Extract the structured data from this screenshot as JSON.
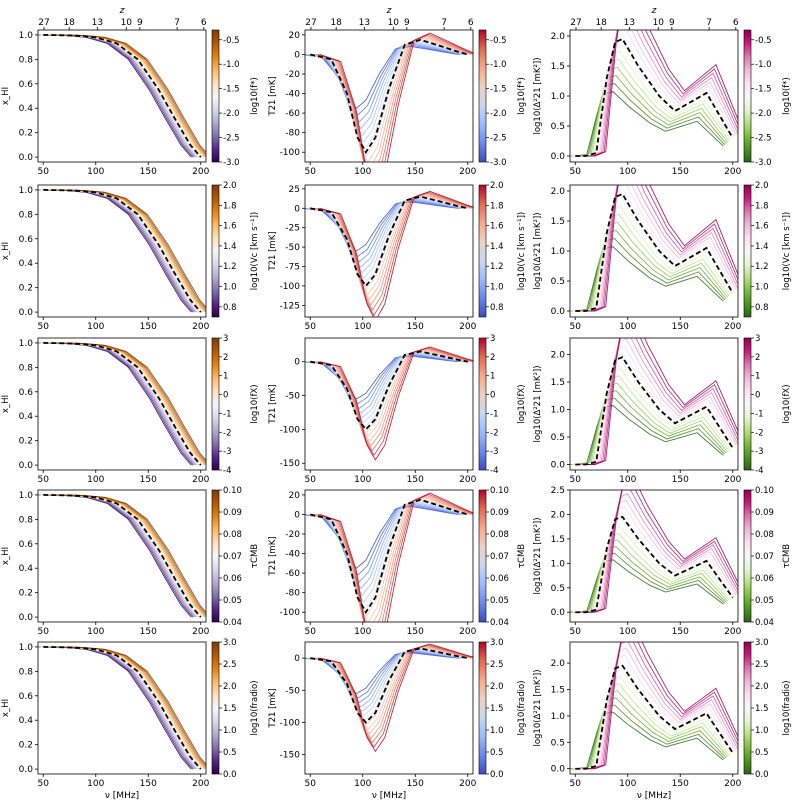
{
  "figure": {
    "colors": {
      "cmap_col1": [
        "#2d004b",
        "#542788",
        "#8073ac",
        "#b2abd2",
        "#d8daeb",
        "#f7f7f7",
        "#fee0b6",
        "#fdb863",
        "#e08214",
        "#b35806",
        "#7f3b08"
      ],
      "cmap_col2": [
        "#3b4cc0",
        "#6788ee",
        "#9abbff",
        "#c9d7f0",
        "#edd1c2",
        "#f7a889",
        "#e26952",
        "#b40426"
      ],
      "cmap_col3": [
        "#276419",
        "#4d9221",
        "#7fbc41",
        "#b8e186",
        "#e6f5d0",
        "#f7f7f7",
        "#fde0ef",
        "#f1b6da",
        "#de77ae",
        "#c51b7d",
        "#8e0152"
      ],
      "fiducial": "#000000"
    },
    "top_axis": {
      "label": "z",
      "ticks": [
        "27",
        "18",
        "13",
        "10",
        "9",
        "7",
        "6"
      ],
      "tick_nu": [
        50.7,
        74.7,
        101.5,
        129.1,
        142.0,
        177.5,
        202.9
      ]
    },
    "bottom_axis": {
      "label": "ν [MHz]",
      "ticks": [
        "50",
        "100",
        "150",
        "200"
      ]
    }
  },
  "chart_data": [
    {
      "row": 0,
      "col": 0,
      "type": "line",
      "ylabel": "x_HI",
      "colorbar": "log10(f*)",
      "y_ticks": [
        "0.0",
        "0.2",
        "0.4",
        "0.6",
        "0.8",
        "1.0"
      ],
      "ylim": [
        -0.04,
        1.04
      ],
      "cbar_ticks": [
        "-0.5",
        "-1.0",
        "-1.5",
        "-2.0",
        "-2.5",
        "-3.0"
      ],
      "cbar_range": [
        -3.0,
        -0.3
      ],
      "x_range": [
        45,
        205
      ],
      "fiducial": [
        [
          50,
          1.0
        ],
        [
          80,
          0.995
        ],
        [
          100,
          0.98
        ],
        [
          120,
          0.93
        ],
        [
          140,
          0.8
        ],
        [
          160,
          0.55
        ],
        [
          175,
          0.32
        ],
        [
          190,
          0.1
        ],
        [
          200,
          0.0
        ]
      ]
    },
    {
      "row": 0,
      "col": 1,
      "type": "line",
      "ylabel": "T21 [mK]",
      "colorbar": "log10(f*)",
      "y_ticks": [
        "20",
        "0",
        "-20",
        "-40",
        "-60",
        "-80",
        "-100"
      ],
      "ylim": [
        -110,
        25
      ],
      "cbar_ticks": [
        "-0.5",
        "-1.0",
        "-1.5",
        "-2.0",
        "-2.5",
        "-3.0"
      ],
      "cbar_range": [
        -3.0,
        -0.3
      ],
      "x_range": [
        45,
        205
      ],
      "fiducial": [
        [
          50,
          0
        ],
        [
          70,
          -5
        ],
        [
          85,
          -40
        ],
        [
          95,
          -85
        ],
        [
          103,
          -100
        ],
        [
          112,
          -85
        ],
        [
          125,
          -35
        ],
        [
          140,
          10
        ],
        [
          155,
          15
        ],
        [
          170,
          10
        ],
        [
          190,
          3
        ],
        [
          200,
          0
        ]
      ]
    },
    {
      "row": 0,
      "col": 2,
      "type": "line",
      "ylabel": "log10(Δ²21 [mK²])",
      "colorbar": "log10(f*)",
      "y_ticks": [
        "0.0",
        "0.5",
        "1.0",
        "1.5",
        "2.0"
      ],
      "ylim": [
        -0.1,
        2.1
      ],
      "cbar_ticks": [
        "-0.5",
        "-1.0",
        "-1.5",
        "-2.0",
        "-2.5",
        "-3.0"
      ],
      "cbar_range": [
        -3.0,
        -0.3
      ],
      "x_range": [
        45,
        205
      ],
      "fiducial": [
        [
          50,
          0.0
        ],
        [
          60,
          0.0
        ],
        [
          70,
          0.05
        ],
        [
          80,
          1.3
        ],
        [
          88,
          1.9
        ],
        [
          95,
          1.95
        ],
        [
          110,
          1.5
        ],
        [
          130,
          1.0
        ],
        [
          145,
          0.75
        ],
        [
          160,
          0.9
        ],
        [
          175,
          1.05
        ],
        [
          190,
          0.6
        ],
        [
          200,
          0.3
        ]
      ]
    },
    {
      "row": 1,
      "col": 0,
      "type": "line",
      "ylabel": "x_HI",
      "colorbar": "log10(Vc [km s⁻¹])",
      "y_ticks": [
        "0.0",
        "0.2",
        "0.4",
        "0.6",
        "0.8",
        "1.0"
      ],
      "ylim": [
        -0.04,
        1.04
      ],
      "cbar_ticks": [
        "2.0",
        "1.8",
        "1.6",
        "1.4",
        "1.2",
        "1.0",
        "0.8"
      ],
      "cbar_range": [
        0.7,
        2.0
      ],
      "x_range": [
        45,
        205
      ],
      "fiducial": [
        [
          50,
          1.0
        ],
        [
          80,
          0.995
        ],
        [
          100,
          0.98
        ],
        [
          120,
          0.93
        ],
        [
          140,
          0.8
        ],
        [
          160,
          0.55
        ],
        [
          175,
          0.32
        ],
        [
          190,
          0.1
        ],
        [
          200,
          0.0
        ]
      ]
    },
    {
      "row": 1,
      "col": 1,
      "type": "line",
      "ylabel": "T21 [mK]",
      "colorbar": "log10(Vc [km s⁻¹])",
      "y_ticks": [
        "25",
        "0",
        "-25",
        "-50",
        "-75",
        "-100",
        "-125"
      ],
      "ylim": [
        -140,
        30
      ],
      "cbar_ticks": [
        "2.0",
        "1.8",
        "1.6",
        "1.4",
        "1.2",
        "1.0",
        "0.8"
      ],
      "cbar_range": [
        0.7,
        2.0
      ],
      "x_range": [
        45,
        205
      ],
      "fiducial": [
        [
          50,
          0
        ],
        [
          70,
          -5
        ],
        [
          85,
          -40
        ],
        [
          95,
          -85
        ],
        [
          103,
          -100
        ],
        [
          112,
          -85
        ],
        [
          125,
          -35
        ],
        [
          140,
          10
        ],
        [
          155,
          15
        ],
        [
          170,
          10
        ],
        [
          190,
          3
        ],
        [
          200,
          0
        ]
      ]
    },
    {
      "row": 1,
      "col": 2,
      "type": "line",
      "ylabel": "log10(Δ²21 [mK²])",
      "colorbar": "log10(Vc [km s⁻¹])",
      "y_ticks": [
        "0.0",
        "0.5",
        "1.0",
        "1.5",
        "2.0"
      ],
      "ylim": [
        -0.1,
        2.1
      ],
      "cbar_ticks": [
        "2.0",
        "1.8",
        "1.6",
        "1.4",
        "1.2",
        "1.0",
        "0.8"
      ],
      "cbar_range": [
        0.7,
        2.0
      ],
      "x_range": [
        45,
        205
      ],
      "fiducial": [
        [
          50,
          0.0
        ],
        [
          60,
          0.0
        ],
        [
          70,
          0.05
        ],
        [
          80,
          1.3
        ],
        [
          88,
          1.9
        ],
        [
          95,
          1.95
        ],
        [
          110,
          1.5
        ],
        [
          130,
          1.0
        ],
        [
          145,
          0.75
        ],
        [
          160,
          0.9
        ],
        [
          175,
          1.05
        ],
        [
          190,
          0.6
        ],
        [
          200,
          0.3
        ]
      ]
    },
    {
      "row": 2,
      "col": 0,
      "type": "line",
      "ylabel": "x_HI",
      "colorbar": "log10(fX)",
      "y_ticks": [
        "0.0",
        "0.2",
        "0.4",
        "0.6",
        "0.8",
        "1.0"
      ],
      "ylim": [
        -0.04,
        1.04
      ],
      "cbar_ticks": [
        "3",
        "2",
        "1",
        "0",
        "-1",
        "-2",
        "-3",
        "-4"
      ],
      "cbar_range": [
        -4,
        3
      ],
      "x_range": [
        45,
        205
      ],
      "fiducial": [
        [
          50,
          1.0
        ],
        [
          80,
          0.995
        ],
        [
          100,
          0.98
        ],
        [
          120,
          0.93
        ],
        [
          140,
          0.8
        ],
        [
          160,
          0.55
        ],
        [
          175,
          0.32
        ],
        [
          190,
          0.1
        ],
        [
          200,
          0.0
        ]
      ]
    },
    {
      "row": 2,
      "col": 1,
      "type": "line",
      "ylabel": "T21 [mK]",
      "colorbar": "log10(fX)",
      "y_ticks": [
        "0",
        "-50",
        "-100",
        "-150"
      ],
      "ylim": [
        -160,
        35
      ],
      "cbar_ticks": [
        "3",
        "2",
        "1",
        "0",
        "-1",
        "-2",
        "-3",
        "-4"
      ],
      "cbar_range": [
        -4,
        3
      ],
      "x_range": [
        45,
        205
      ],
      "fiducial": [
        [
          50,
          0
        ],
        [
          70,
          -5
        ],
        [
          85,
          -40
        ],
        [
          95,
          -85
        ],
        [
          103,
          -100
        ],
        [
          112,
          -85
        ],
        [
          125,
          -35
        ],
        [
          140,
          10
        ],
        [
          155,
          15
        ],
        [
          170,
          10
        ],
        [
          190,
          3
        ],
        [
          200,
          0
        ]
      ]
    },
    {
      "row": 2,
      "col": 2,
      "type": "line",
      "ylabel": "log10(Δ²21 [mK²])",
      "colorbar": "log10(fX)",
      "y_ticks": [
        "0.0",
        "0.5",
        "1.0",
        "1.5",
        "2.0"
      ],
      "ylim": [
        -0.1,
        2.3
      ],
      "cbar_ticks": [
        "3",
        "2",
        "1",
        "0",
        "-1",
        "-2",
        "-3",
        "-4"
      ],
      "cbar_range": [
        -4,
        3
      ],
      "x_range": [
        45,
        205
      ],
      "fiducial": [
        [
          50,
          0.0
        ],
        [
          60,
          0.0
        ],
        [
          70,
          0.05
        ],
        [
          80,
          1.3
        ],
        [
          88,
          1.9
        ],
        [
          95,
          1.95
        ],
        [
          110,
          1.5
        ],
        [
          130,
          1.0
        ],
        [
          145,
          0.75
        ],
        [
          160,
          0.9
        ],
        [
          175,
          1.05
        ],
        [
          190,
          0.6
        ],
        [
          200,
          0.3
        ]
      ]
    },
    {
      "row": 3,
      "col": 0,
      "type": "line",
      "ylabel": "x_HI",
      "colorbar": "τCMB",
      "y_ticks": [
        "0.0",
        "0.2",
        "0.4",
        "0.6",
        "0.8",
        "1.0"
      ],
      "ylim": [
        -0.04,
        1.04
      ],
      "cbar_ticks": [
        "0.10",
        "0.09",
        "0.08",
        "0.07",
        "0.06",
        "0.05",
        "0.04"
      ],
      "cbar_range": [
        0.04,
        0.1
      ],
      "x_range": [
        45,
        205
      ],
      "fiducial": [
        [
          50,
          1.0
        ],
        [
          80,
          0.995
        ],
        [
          100,
          0.98
        ],
        [
          120,
          0.93
        ],
        [
          140,
          0.8
        ],
        [
          160,
          0.55
        ],
        [
          175,
          0.32
        ],
        [
          190,
          0.1
        ],
        [
          200,
          0.0
        ]
      ]
    },
    {
      "row": 3,
      "col": 1,
      "type": "line",
      "ylabel": "T21 [mK]",
      "colorbar": "τCMB",
      "y_ticks": [
        "20",
        "0",
        "-20",
        "-40",
        "-60",
        "-80",
        "-100"
      ],
      "ylim": [
        -110,
        25
      ],
      "cbar_ticks": [
        "0.10",
        "0.09",
        "0.08",
        "0.07",
        "0.06",
        "0.05",
        "0.04"
      ],
      "cbar_range": [
        0.04,
        0.1
      ],
      "x_range": [
        45,
        205
      ],
      "fiducial": [
        [
          50,
          0
        ],
        [
          70,
          -5
        ],
        [
          85,
          -40
        ],
        [
          95,
          -85
        ],
        [
          103,
          -100
        ],
        [
          112,
          -85
        ],
        [
          125,
          -35
        ],
        [
          140,
          10
        ],
        [
          155,
          15
        ],
        [
          170,
          10
        ],
        [
          190,
          3
        ],
        [
          200,
          0
        ]
      ]
    },
    {
      "row": 3,
      "col": 2,
      "type": "line",
      "ylabel": "log10(Δ²21 [mK²])",
      "colorbar": "τCMB",
      "y_ticks": [
        "0.0",
        "0.5",
        "1.0",
        "1.5",
        "2.0",
        "2.5"
      ],
      "ylim": [
        -0.2,
        2.5
      ],
      "cbar_ticks": [
        "0.10",
        "0.09",
        "0.08",
        "0.07",
        "0.06",
        "0.05",
        "0.04"
      ],
      "cbar_range": [
        0.04,
        0.1
      ],
      "x_range": [
        45,
        205
      ],
      "fiducial": [
        [
          50,
          0.0
        ],
        [
          60,
          0.0
        ],
        [
          70,
          0.05
        ],
        [
          80,
          1.3
        ],
        [
          88,
          1.9
        ],
        [
          95,
          1.95
        ],
        [
          110,
          1.5
        ],
        [
          130,
          1.0
        ],
        [
          145,
          0.75
        ],
        [
          160,
          0.9
        ],
        [
          175,
          1.05
        ],
        [
          190,
          0.6
        ],
        [
          200,
          0.3
        ]
      ]
    },
    {
      "row": 4,
      "col": 0,
      "type": "line",
      "ylabel": "x_HI",
      "colorbar": "log10(fradio)",
      "y_ticks": [
        "0.0",
        "0.2",
        "0.4",
        "0.6",
        "0.8",
        "1.0"
      ],
      "ylim": [
        -0.04,
        1.04
      ],
      "cbar_ticks": [
        "3.0",
        "2.5",
        "2.0",
        "1.5",
        "1.0",
        "0.5",
        "0.0"
      ],
      "cbar_range": [
        0.0,
        3.0
      ],
      "x_range": [
        45,
        205
      ],
      "fiducial": [
        [
          50,
          1.0
        ],
        [
          80,
          0.995
        ],
        [
          100,
          0.98
        ],
        [
          120,
          0.93
        ],
        [
          140,
          0.8
        ],
        [
          160,
          0.55
        ],
        [
          175,
          0.32
        ],
        [
          190,
          0.1
        ],
        [
          200,
          0.0
        ]
      ]
    },
    {
      "row": 4,
      "col": 1,
      "type": "line",
      "ylabel": "T21 [mK]",
      "colorbar": "log10(fradio)",
      "y_ticks": [
        "0",
        "-50",
        "-100",
        "-150"
      ],
      "ylim": [
        -180,
        25
      ],
      "cbar_ticks": [
        "3.0",
        "2.5",
        "2.0",
        "1.5",
        "1.0",
        "0.5",
        "0.0"
      ],
      "cbar_range": [
        0.0,
        3.0
      ],
      "x_range": [
        45,
        205
      ],
      "fiducial": [
        [
          50,
          0
        ],
        [
          70,
          -5
        ],
        [
          85,
          -40
        ],
        [
          95,
          -85
        ],
        [
          103,
          -100
        ],
        [
          112,
          -85
        ],
        [
          125,
          -35
        ],
        [
          140,
          10
        ],
        [
          155,
          15
        ],
        [
          170,
          10
        ],
        [
          190,
          3
        ],
        [
          200,
          0
        ]
      ]
    },
    {
      "row": 4,
      "col": 2,
      "type": "line",
      "ylabel": "log10(Δ²21 [mK²])",
      "colorbar": "log10(fradio)",
      "y_ticks": [
        "0.0",
        "0.5",
        "1.0",
        "1.5",
        "2.0"
      ],
      "ylim": [
        -0.1,
        2.4
      ],
      "cbar_ticks": [
        "3.0",
        "2.5",
        "2.0",
        "1.5",
        "1.0",
        "0.5",
        "0.0"
      ],
      "cbar_range": [
        0.0,
        3.0
      ],
      "x_range": [
        45,
        205
      ],
      "fiducial": [
        [
          50,
          0.0
        ],
        [
          60,
          0.0
        ],
        [
          70,
          0.05
        ],
        [
          80,
          1.3
        ],
        [
          88,
          1.9
        ],
        [
          95,
          1.95
        ],
        [
          110,
          1.5
        ],
        [
          130,
          1.0
        ],
        [
          145,
          0.75
        ],
        [
          160,
          0.9
        ],
        [
          175,
          1.05
        ],
        [
          190,
          0.6
        ],
        [
          200,
          0.3
        ]
      ]
    }
  ]
}
